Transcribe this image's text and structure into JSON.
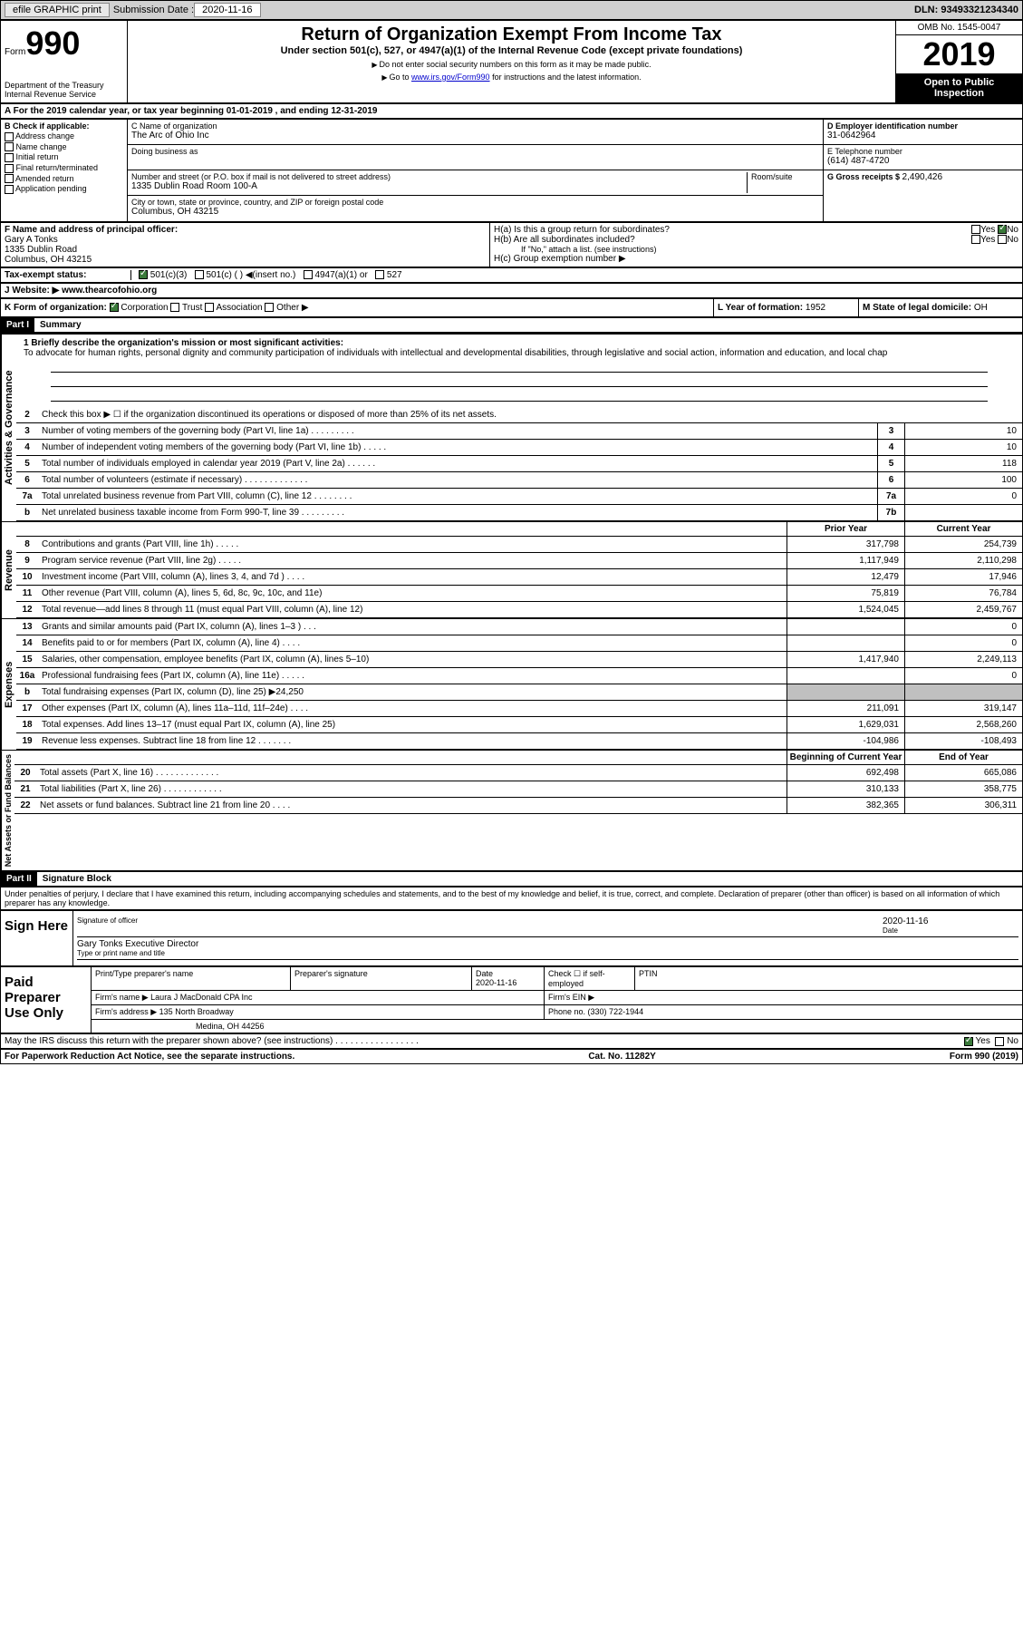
{
  "topbar": {
    "efile": "efile GRAPHIC print",
    "submission_label": "Submission Date : ",
    "submission_date": "2020-11-16",
    "dln": "DLN: 93493321234340"
  },
  "header": {
    "form_word": "Form",
    "form_num": "990",
    "dept": "Department of the Treasury",
    "irs": "Internal Revenue Service",
    "title": "Return of Organization Exempt From Income Tax",
    "subtitle": "Under section 501(c), 527, or 4947(a)(1) of the Internal Revenue Code (except private foundations)",
    "note1": "Do not enter social security numbers on this form as it may be made public.",
    "note2_pre": "Go to ",
    "note2_link": "www.irs.gov/Form990",
    "note2_post": " for instructions and the latest information.",
    "omb": "OMB No. 1545-0047",
    "year": "2019",
    "inspect": "Open to Public Inspection"
  },
  "rowA": "A For the 2019 calendar year, or tax year beginning 01-01-2019   , and ending 12-31-2019",
  "colB": {
    "title": "B Check if applicable:",
    "opts": [
      "Address change",
      "Name change",
      "Initial return",
      "Final return/terminated",
      "Amended return",
      "Application pending"
    ]
  },
  "colC": {
    "name_label": "C Name of organization",
    "name": "The Arc of Ohio Inc",
    "dba_label": "Doing business as",
    "addr_label": "Number and street (or P.O. box if mail is not delivered to street address)",
    "room_label": "Room/suite",
    "addr": "1335 Dublin Road Room 100-A",
    "city_label": "City or town, state or province, country, and ZIP or foreign postal code",
    "city": "Columbus, OH  43215"
  },
  "colD": {
    "ein_label": "D Employer identification number",
    "ein": "31-0642964",
    "phone_label": "E Telephone number",
    "phone": "(614) 487-4720",
    "gross_label": "G Gross receipts $ ",
    "gross": "2,490,426"
  },
  "officer": {
    "label": "F  Name and address of principal officer:",
    "name": "Gary A Tonks",
    "addr1": "1335 Dublin Road",
    "addr2": "Columbus, OH  43215"
  },
  "hsection": {
    "ha": "H(a)  Is this a group return for subordinates?",
    "hb": "H(b)  Are all subordinates included?",
    "hb_note": "If \"No,\" attach a list. (see instructions)",
    "hc": "H(c)  Group exemption number ▶",
    "yes": "Yes",
    "no": "No"
  },
  "taxstatus": {
    "label": "Tax-exempt status:",
    "opt1": "501(c)(3)",
    "opt2": "501(c) (  ) ◀(insert no.)",
    "opt3": "4947(a)(1) or",
    "opt4": "527"
  },
  "website": {
    "label": "J Website: ▶",
    "url": "www.thearcofohio.org"
  },
  "korg": {
    "label": "K Form of organization:",
    "corp": "Corporation",
    "trust": "Trust",
    "assoc": "Association",
    "other": "Other ▶",
    "l_label": "L Year of formation: ",
    "l_val": "1952",
    "m_label": "M State of legal domicile: ",
    "m_val": "OH"
  },
  "part1": {
    "tag": "Part I",
    "title": "Summary",
    "q1_label": "1  Briefly describe the organization's mission or most significant activities:",
    "mission": "To advocate for human rights, personal dignity and community participation of individuals with intellectual and developmental disabilities, through legislative and social action, information and education, and local chap",
    "q2": "Check this box ▶ ☐  if the organization discontinued its operations or disposed of more than 25% of its net assets.",
    "sections": {
      "gov_label": "Activities & Governance",
      "rev_label": "Revenue",
      "exp_label": "Expenses",
      "net_label": "Net Assets or Fund Balances"
    },
    "gov_rows": [
      {
        "n": "3",
        "d": "Number of voting members of the governing body (Part VI, line 1a)  .   .   .   .   .   .   .   .   .",
        "b": "3",
        "v": "10"
      },
      {
        "n": "4",
        "d": "Number of independent voting members of the governing body (Part VI, line 1b)  .   .   .   .   .",
        "b": "4",
        "v": "10"
      },
      {
        "n": "5",
        "d": "Total number of individuals employed in calendar year 2019 (Part V, line 2a)  .   .   .   .   .   .",
        "b": "5",
        "v": "118"
      },
      {
        "n": "6",
        "d": "Total number of volunteers (estimate if necessary)   .   .   .   .   .   .   .   .   .   .   .   .   .",
        "b": "6",
        "v": "100"
      },
      {
        "n": "7a",
        "d": "Total unrelated business revenue from Part VIII, column (C), line 12  .   .   .   .   .   .   .   .",
        "b": "7a",
        "v": "0"
      },
      {
        "n": "b",
        "d": "Net unrelated business taxable income from Form 990-T, line 39   .   .   .   .   .   .   .   .   .",
        "b": "7b",
        "v": ""
      }
    ],
    "col_prior": "Prior Year",
    "col_current": "Current Year",
    "rev_rows": [
      {
        "n": "8",
        "d": "Contributions and grants (Part VIII, line 1h)   .   .   .   .   .",
        "p": "317,798",
        "c": "254,739"
      },
      {
        "n": "9",
        "d": "Program service revenue (Part VIII, line 2g)   .   .   .   .   .",
        "p": "1,117,949",
        "c": "2,110,298"
      },
      {
        "n": "10",
        "d": "Investment income (Part VIII, column (A), lines 3, 4, and 7d )   .   .   .   .",
        "p": "12,479",
        "c": "17,946"
      },
      {
        "n": "11",
        "d": "Other revenue (Part VIII, column (A), lines 5, 6d, 8c, 9c, 10c, and 11e)",
        "p": "75,819",
        "c": "76,784"
      },
      {
        "n": "12",
        "d": "Total revenue—add lines 8 through 11 (must equal Part VIII, column (A), line 12)",
        "p": "1,524,045",
        "c": "2,459,767"
      }
    ],
    "exp_rows": [
      {
        "n": "13",
        "d": "Grants and similar amounts paid (Part IX, column (A), lines 1–3 )  .   .   .",
        "p": "",
        "c": "0"
      },
      {
        "n": "14",
        "d": "Benefits paid to or for members (Part IX, column (A), line 4)  .   .   .   .",
        "p": "",
        "c": "0"
      },
      {
        "n": "15",
        "d": "Salaries, other compensation, employee benefits (Part IX, column (A), lines 5–10)",
        "p": "1,417,940",
        "c": "2,249,113"
      },
      {
        "n": "16a",
        "d": "Professional fundraising fees (Part IX, column (A), line 11e)  .   .   .   .   .",
        "p": "",
        "c": "0"
      },
      {
        "n": "b",
        "d": "Total fundraising expenses (Part IX, column (D), line 25) ▶24,250",
        "p": "GRAY",
        "c": "GRAY"
      },
      {
        "n": "17",
        "d": "Other expenses (Part IX, column (A), lines 11a–11d, 11f–24e)   .   .   .   .",
        "p": "211,091",
        "c": "319,147"
      },
      {
        "n": "18",
        "d": "Total expenses. Add lines 13–17 (must equal Part IX, column (A), line 25)",
        "p": "1,629,031",
        "c": "2,568,260"
      },
      {
        "n": "19",
        "d": "Revenue less expenses. Subtract line 18 from line 12 .   .   .   .   .   .   .",
        "p": "-104,986",
        "c": "-108,493"
      }
    ],
    "col_begin": "Beginning of Current Year",
    "col_end": "End of Year",
    "net_rows": [
      {
        "n": "20",
        "d": "Total assets (Part X, line 16)  .   .   .   .   .   .   .   .   .   .   .   .   .",
        "p": "692,498",
        "c": "665,086"
      },
      {
        "n": "21",
        "d": "Total liabilities (Part X, line 26)  .   .   .   .   .   .   .   .   .   .   .   .",
        "p": "310,133",
        "c": "358,775"
      },
      {
        "n": "22",
        "d": "Net assets or fund balances. Subtract line 21 from line 20   .   .   .   .",
        "p": "382,365",
        "c": "306,311"
      }
    ]
  },
  "part2": {
    "tag": "Part II",
    "title": "Signature Block",
    "perjury": "Under penalties of perjury, I declare that I have examined this return, including accompanying schedules and statements, and to the best of my knowledge and belief, it is true, correct, and complete. Declaration of preparer (other than officer) is based on all information of which preparer has any knowledge.",
    "sign_label": "Sign Here",
    "sig_officer": "Signature of officer",
    "sig_date": "2020-11-16",
    "date_label": "Date",
    "sig_name": "Gary Tonks  Executive Director",
    "sig_name_label": "Type or print name and title",
    "paid_label": "Paid Preparer Use Only",
    "pt_name_label": "Print/Type preparer's name",
    "pt_sig_label": "Preparer's signature",
    "pt_date_label": "Date",
    "pt_date": "2020-11-16",
    "pt_check": "Check ☐ if self-employed",
    "ptin_label": "PTIN",
    "firm_name_label": "Firm's name    ▶",
    "firm_name": "Laura J MacDonald CPA Inc",
    "firm_ein_label": "Firm's EIN ▶",
    "firm_addr_label": "Firm's address ▶",
    "firm_addr1": "135 North Broadway",
    "firm_addr2": "Medina, OH  44256",
    "firm_phone_label": "Phone no. ",
    "firm_phone": "(330) 722-1944",
    "discuss": "May the IRS discuss this return with the preparer shown above? (see instructions)   .   .   .   .   .   .   .   .   .   .   .   .   .   .   .   .   .",
    "yes": "Yes",
    "no": "No"
  },
  "footer": {
    "pra": "For Paperwork Reduction Act Notice, see the separate instructions.",
    "cat": "Cat. No. 11282Y",
    "form": "Form 990 (2019)"
  }
}
